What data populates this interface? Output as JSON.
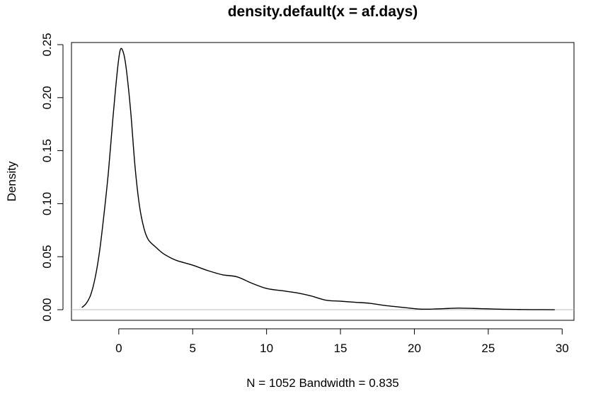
{
  "chart_data": {
    "type": "line",
    "title": "density.default(x = af.days)",
    "xlabel": "N = 1052   Bandwidth = 0.835",
    "ylabel": "Density",
    "xlim": [
      -3.2,
      30.8
    ],
    "ylim": [
      -0.01,
      0.252
    ],
    "xticks": [
      0,
      5,
      10,
      15,
      20,
      25,
      30
    ],
    "xtick_labels": [
      "0",
      "5",
      "10",
      "15",
      "20",
      "25",
      "30"
    ],
    "yticks": [
      0.0,
      0.05,
      0.1,
      0.15,
      0.2,
      0.25
    ],
    "ytick_labels": [
      "0.00",
      "0.05",
      "0.10",
      "0.15",
      "0.20",
      "0.25"
    ],
    "grid": false,
    "legend": "none",
    "baseline": {
      "y": 0,
      "color": "#bebebe"
    },
    "line_color": "#000000",
    "series": [
      {
        "x": [
          -2.5,
          -2.2,
          -1.9,
          -1.6,
          -1.3,
          -1.0,
          -0.7,
          -0.4,
          -0.1,
          0.1,
          0.3,
          0.5,
          0.8,
          1.1,
          1.4,
          1.7,
          2.0,
          2.5,
          3.0,
          3.5,
          4.0,
          5.0,
          6.0,
          7.0,
          8.0,
          9.0,
          10.0,
          11.0,
          12.0,
          13.0,
          14.0,
          15.0,
          16.0,
          17.0,
          18.0,
          19.0,
          20.0,
          20.5,
          21.0,
          22.0,
          23.0,
          24.0,
          25.0,
          26.0,
          27.0,
          28.0,
          29.5
        ],
        "y": [
          0.002,
          0.006,
          0.014,
          0.03,
          0.055,
          0.09,
          0.13,
          0.18,
          0.225,
          0.245,
          0.243,
          0.228,
          0.188,
          0.135,
          0.098,
          0.077,
          0.066,
          0.059,
          0.053,
          0.049,
          0.046,
          0.042,
          0.037,
          0.033,
          0.031,
          0.025,
          0.02,
          0.018,
          0.016,
          0.013,
          0.009,
          0.008,
          0.007,
          0.006,
          0.004,
          0.0025,
          0.001,
          0.0005,
          0.0005,
          0.001,
          0.0015,
          0.0012,
          0.0008,
          0.0004,
          0.0002,
          0.0001,
          0.0
        ]
      }
    ]
  }
}
